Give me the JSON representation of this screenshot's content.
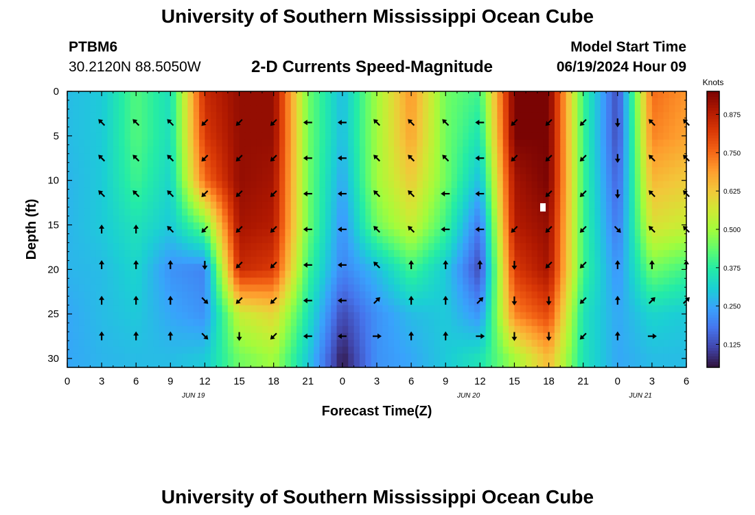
{
  "header": {
    "top_title": "University of Southern Mississippi Ocean Cube",
    "bottom_title": "University of Southern Mississippi Ocean Cube",
    "station": "PTBM6",
    "coordinates": "30.2120N  88.5050W",
    "start_label": "Model Start Time",
    "start_value": "06/19/2024 Hour 09"
  },
  "colors": {
    "scale": [
      "#30123b",
      "#4145ab",
      "#4675ed",
      "#39a2fc",
      "#1bcfd4",
      "#24eca6",
      "#61fc6c",
      "#a4fc3b",
      "#d1e834",
      "#f3c63a",
      "#fe9b2d",
      "#f36315",
      "#d93806",
      "#b11901",
      "#7a0403"
    ],
    "arrow": "#000000",
    "frame": "#000000"
  },
  "chart_data": {
    "type": "heatmap",
    "title": "2-D Currents Speed-Magnitude",
    "xlabel": "Forecast Time(Z)",
    "ylabel": "Depth (ft)",
    "x_ticks": [
      "0",
      "3",
      "6",
      "9",
      "12",
      "15",
      "18",
      "21",
      "0",
      "3",
      "6",
      "9",
      "12",
      "15",
      "18",
      "21",
      "0",
      "3",
      "6"
    ],
    "date_labels": [
      {
        "label": "JUN 19",
        "hour": 11
      },
      {
        "label": "JUN 20",
        "hour": 35
      },
      {
        "label": "JUN 21",
        "hour": 50
      }
    ],
    "y_ticks": [
      0,
      5,
      10,
      15,
      20,
      25,
      30
    ],
    "xlim": [
      0,
      54
    ],
    "ylim": [
      0,
      31
    ],
    "colorbar": {
      "label": "Knots",
      "ticks": [
        "0.875",
        "0.750",
        "0.625",
        "0.500",
        "0.375",
        "0.250",
        "0.125"
      ],
      "tick_values": [
        0.875,
        0.75,
        0.625,
        0.5,
        0.375,
        0.25,
        0.125
      ],
      "range": [
        0.05,
        0.95
      ]
    },
    "hours": [
      0,
      3,
      6,
      9,
      12,
      15,
      18,
      21,
      24,
      27,
      30,
      33,
      36,
      39,
      42,
      45,
      48,
      51,
      54
    ],
    "depths": [
      0,
      5,
      10,
      15,
      20,
      25,
      30
    ],
    "speed_knots": [
      [
        0.28,
        0.3,
        0.42,
        0.34,
        0.85,
        0.92,
        0.92,
        0.45,
        0.28,
        0.5,
        0.7,
        0.45,
        0.4,
        0.95,
        0.95,
        0.4,
        0.12,
        0.75,
        0.7
      ],
      [
        0.28,
        0.3,
        0.42,
        0.34,
        0.82,
        0.92,
        0.92,
        0.45,
        0.28,
        0.5,
        0.68,
        0.45,
        0.35,
        0.95,
        0.95,
        0.4,
        0.12,
        0.72,
        0.68
      ],
      [
        0.27,
        0.3,
        0.4,
        0.32,
        0.75,
        0.92,
        0.9,
        0.45,
        0.25,
        0.5,
        0.62,
        0.45,
        0.28,
        0.9,
        0.95,
        0.4,
        0.15,
        0.65,
        0.62
      ],
      [
        0.27,
        0.3,
        0.35,
        0.3,
        0.45,
        0.9,
        0.88,
        0.45,
        0.22,
        0.45,
        0.55,
        0.4,
        0.18,
        0.88,
        0.92,
        0.4,
        0.18,
        0.58,
        0.55
      ],
      [
        0.27,
        0.28,
        0.32,
        0.22,
        0.2,
        0.85,
        0.82,
        0.4,
        0.2,
        0.28,
        0.4,
        0.3,
        0.12,
        0.82,
        0.9,
        0.4,
        0.22,
        0.45,
        0.4
      ],
      [
        0.25,
        0.28,
        0.3,
        0.25,
        0.22,
        0.55,
        0.6,
        0.35,
        0.12,
        0.22,
        0.28,
        0.3,
        0.22,
        0.72,
        0.8,
        0.35,
        0.25,
        0.32,
        0.3
      ],
      [
        0.25,
        0.27,
        0.28,
        0.28,
        0.3,
        0.45,
        0.5,
        0.3,
        0.06,
        0.22,
        0.25,
        0.3,
        0.35,
        0.5,
        0.65,
        0.35,
        0.25,
        0.28,
        0.28
      ]
    ],
    "direction_rows": [
      {
        "depth": 3.5,
        "dirs": [
          null,
          "NW",
          "NW",
          "NW",
          "SW",
          "SW",
          "SW",
          "W",
          "W",
          "NW",
          "NW",
          "NW",
          "W",
          "SW",
          "SW",
          "SW",
          "S",
          "NW",
          "NW"
        ]
      },
      {
        "depth": 7.5,
        "dirs": [
          null,
          "NW",
          "NW",
          "NW",
          "SW",
          "SW",
          "SW",
          "W",
          "W",
          "NW",
          "NW",
          "NW",
          "W",
          "SW",
          "SW",
          "SW",
          "S",
          "NW",
          "NW"
        ]
      },
      {
        "depth": 11.5,
        "dirs": [
          null,
          "NW",
          "NW",
          "NW",
          "SW",
          "SW",
          "SW",
          "W",
          "W",
          "NW",
          "NW",
          "W",
          "W",
          null,
          "SW",
          "SW",
          "S",
          "NW",
          "NW"
        ]
      },
      {
        "depth": 15.5,
        "dirs": [
          null,
          "N",
          "N",
          "NW",
          "SW",
          "SW",
          "SW",
          "W",
          "W",
          "NW",
          "NW",
          "W",
          "W",
          "SW",
          "SW",
          "SW",
          "SE",
          "NW",
          "NW"
        ]
      },
      {
        "depth": 19.5,
        "dirs": [
          null,
          "N",
          "N",
          "N",
          "S",
          "SW",
          "SW",
          "W",
          "W",
          "NW",
          "N",
          "N",
          "N",
          "S",
          "SW",
          "SW",
          "N",
          "N",
          "N"
        ]
      },
      {
        "depth": 23.5,
        "dirs": [
          null,
          "N",
          "N",
          "N",
          "SE",
          "SW",
          "SW",
          "W",
          "W",
          "NE",
          "N",
          "N",
          "NE",
          "S",
          "S",
          "SW",
          "N",
          "NE",
          "NE"
        ]
      },
      {
        "depth": 27.5,
        "dirs": [
          null,
          "N",
          "N",
          "N",
          "SE",
          "S",
          "SW",
          "W",
          "W",
          "E",
          "N",
          "N",
          "E",
          "S",
          "S",
          "SW",
          "N",
          "E",
          null
        ]
      }
    ]
  }
}
